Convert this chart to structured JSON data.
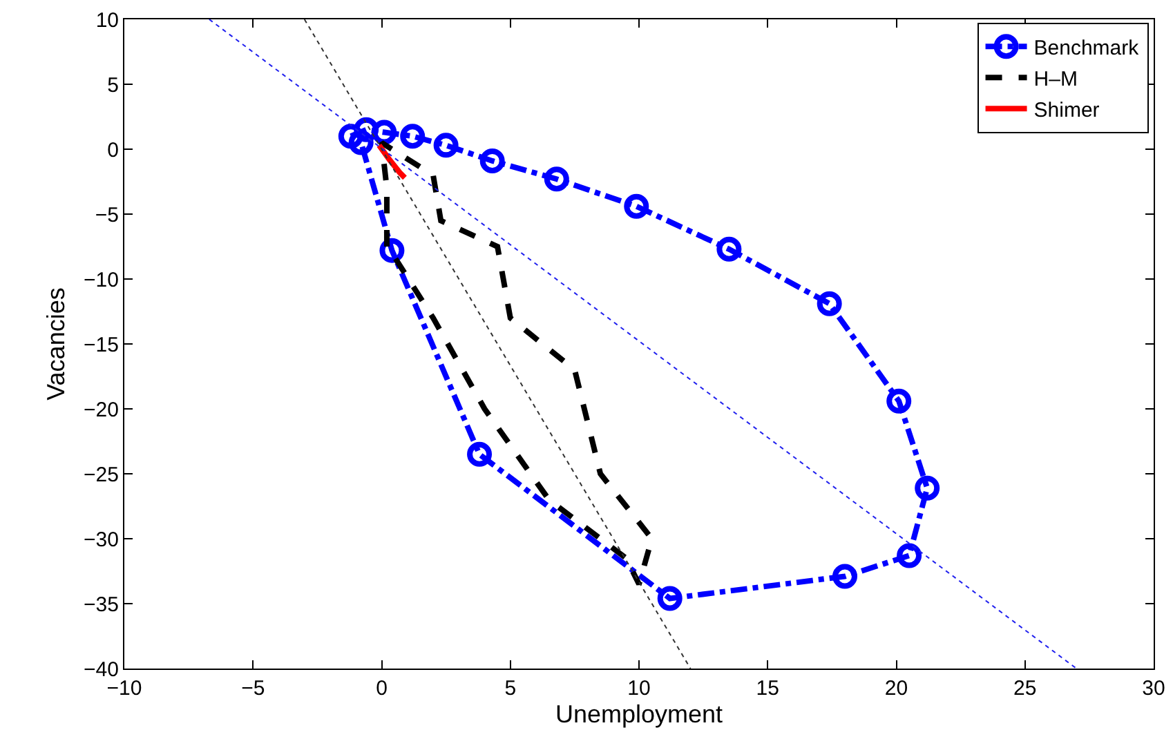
{
  "chart_data": {
    "type": "line",
    "xlabel": "Unemployment",
    "ylabel": "Vacancies",
    "xlim": [
      -10,
      30
    ],
    "ylim": [
      -40,
      10
    ],
    "xticks": [
      -10,
      -5,
      0,
      5,
      10,
      15,
      20,
      25,
      30
    ],
    "yticks": [
      -40,
      -35,
      -30,
      -25,
      -20,
      -15,
      -10,
      -5,
      0,
      5,
      10
    ],
    "grid": false,
    "legend": "top right",
    "series": [
      {
        "name": "Benchmark",
        "color": "#0000ff",
        "marker": "circle",
        "line_style": "dashdot",
        "x": [
          -1.2,
          -0.6,
          0.1,
          1.2,
          2.5,
          4.3,
          6.8,
          9.9,
          13.5,
          17.4,
          20.1,
          21.2,
          20.5,
          18,
          11.2,
          3.8,
          0.4,
          -0.8
        ],
        "values": [
          1,
          1.5,
          1.3,
          1,
          0.3,
          -0.9,
          -2.3,
          -4.4,
          -7.7,
          -11.9,
          -19.4,
          -26.1,
          -31.3,
          -32.9,
          -34.6,
          -23.5,
          -7.8,
          0.5
        ]
      },
      {
        "name": "H–M",
        "color": "#000000",
        "marker": "none",
        "line_style": "dashed",
        "x": [
          0.2,
          0.2,
          0,
          0.8,
          2,
          2.3,
          4.5,
          5,
          7.5,
          8.5,
          10.5,
          10,
          9.5,
          6.5,
          4,
          2,
          0.4
        ],
        "values": [
          -7.5,
          -3,
          0.5,
          -0.5,
          -2,
          -5.5,
          -7.5,
          -13,
          -17,
          -25,
          -30,
          -33.5,
          -31.5,
          -27,
          -20,
          -13,
          -8
        ]
      },
      {
        "name": "Shimer",
        "color": "#ff0000",
        "marker": "none",
        "line_style": "solid",
        "x": [
          -0.1,
          0.3,
          0.7,
          0.9
        ],
        "values": [
          0.3,
          -0.8,
          -1.8,
          -2.2
        ]
      },
      {
        "color": "#2020ee",
        "marker": "none",
        "line_style": "dotted",
        "x": [
          -6.7,
          27
        ],
        "values": [
          10,
          -40
        ]
      },
      {
        "color": "#333333",
        "marker": "none",
        "line_style": "dotted",
        "x": [
          -3,
          12
        ],
        "values": [
          10,
          -40
        ]
      }
    ]
  }
}
